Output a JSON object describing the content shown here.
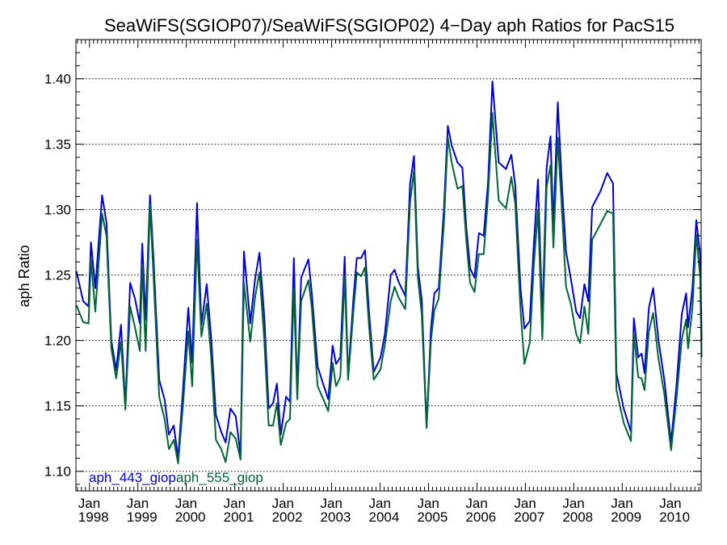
{
  "chart_data": {
    "type": "line",
    "title": "SeaWiFS(SGIOP07)/SeaWiFS(SGIOP02) 4−Day aph Ratios for PacS15",
    "xlabel": "",
    "ylabel": "aph Ratio",
    "xlim": [
      1997.72,
      2010.63
    ],
    "ylim": [
      1.085,
      1.43
    ],
    "yticks": [
      "1.10",
      "1.15",
      "1.20",
      "1.25",
      "1.30",
      "1.35",
      "1.40"
    ],
    "ytick_values": [
      1.1,
      1.15,
      1.2,
      1.25,
      1.3,
      1.35,
      1.4
    ],
    "xticks": [
      {
        "value": 1998,
        "month": "Jan",
        "year": "1998"
      },
      {
        "value": 1999,
        "month": "Jan",
        "year": "1999"
      },
      {
        "value": 2000,
        "month": "Jan",
        "year": "2000"
      },
      {
        "value": 2001,
        "month": "Jan",
        "year": "2001"
      },
      {
        "value": 2002,
        "month": "Jan",
        "year": "2002"
      },
      {
        "value": 2003,
        "month": "Jan",
        "year": "2003"
      },
      {
        "value": 2004,
        "month": "Jan",
        "year": "2004"
      },
      {
        "value": 2005,
        "month": "Jan",
        "year": "2005"
      },
      {
        "value": 2006,
        "month": "Jan",
        "year": "2006"
      },
      {
        "value": 2007,
        "month": "Jan",
        "year": "2007"
      },
      {
        "value": 2008,
        "month": "Jan",
        "year": "2008"
      },
      {
        "value": 2009,
        "month": "Jan",
        "year": "2009"
      },
      {
        "value": 2010,
        "month": "Jan",
        "year": "2010"
      }
    ],
    "grid": "horizontal dotted",
    "legend_position": "bottom-left",
    "series": [
      {
        "name": "aph_443_giop",
        "color": "#0000dd",
        "points": [
          [
            1997.73,
            1.253
          ],
          [
            1997.87,
            1.23
          ],
          [
            1997.98,
            1.226
          ],
          [
            1998.03,
            1.275
          ],
          [
            1998.12,
            1.24
          ],
          [
            1998.26,
            1.311
          ],
          [
            1998.35,
            1.29
          ],
          [
            1998.45,
            1.2
          ],
          [
            1998.55,
            1.177
          ],
          [
            1998.65,
            1.212
          ],
          [
            1998.74,
            1.15
          ],
          [
            1998.84,
            1.244
          ],
          [
            1998.94,
            1.232
          ],
          [
            1999.04,
            1.213
          ],
          [
            1999.09,
            1.274
          ],
          [
            1999.16,
            1.216
          ],
          [
            1999.25,
            1.311
          ],
          [
            1999.32,
            1.264
          ],
          [
            1999.44,
            1.17
          ],
          [
            1999.55,
            1.155
          ],
          [
            1999.64,
            1.128
          ],
          [
            1999.74,
            1.135
          ],
          [
            1999.83,
            1.11
          ],
          [
            1999.93,
            1.162
          ],
          [
            2000.04,
            1.225
          ],
          [
            2000.12,
            1.183
          ],
          [
            2000.22,
            1.305
          ],
          [
            2000.31,
            1.212
          ],
          [
            2000.42,
            1.243
          ],
          [
            2000.51,
            1.203
          ],
          [
            2000.61,
            1.143
          ],
          [
            2000.72,
            1.13
          ],
          [
            2000.81,
            1.122
          ],
          [
            2000.91,
            1.148
          ],
          [
            2001.02,
            1.142
          ],
          [
            2001.12,
            1.113
          ],
          [
            2001.19,
            1.268
          ],
          [
            2001.32,
            1.213
          ],
          [
            2001.42,
            1.247
          ],
          [
            2001.51,
            1.267
          ],
          [
            2001.61,
            1.218
          ],
          [
            2001.7,
            1.148
          ],
          [
            2001.79,
            1.152
          ],
          [
            2001.87,
            1.167
          ],
          [
            2001.95,
            1.128
          ],
          [
            2002.06,
            1.157
          ],
          [
            2002.14,
            1.153
          ],
          [
            2002.22,
            1.263
          ],
          [
            2002.29,
            1.159
          ],
          [
            2002.37,
            1.248
          ],
          [
            2002.52,
            1.262
          ],
          [
            2002.59,
            1.236
          ],
          [
            2002.71,
            1.18
          ],
          [
            2002.84,
            1.165
          ],
          [
            2002.93,
            1.155
          ],
          [
            2003.02,
            1.196
          ],
          [
            2003.09,
            1.182
          ],
          [
            2003.18,
            1.187
          ],
          [
            2003.27,
            1.264
          ],
          [
            2003.34,
            1.172
          ],
          [
            2003.45,
            1.232
          ],
          [
            2003.52,
            1.263
          ],
          [
            2003.61,
            1.263
          ],
          [
            2003.69,
            1.269
          ],
          [
            2003.77,
            1.223
          ],
          [
            2003.87,
            1.176
          ],
          [
            2004.01,
            1.187
          ],
          [
            2004.1,
            1.205
          ],
          [
            2004.22,
            1.25
          ],
          [
            2004.3,
            1.254
          ],
          [
            2004.38,
            1.245
          ],
          [
            2004.52,
            1.234
          ],
          [
            2004.62,
            1.32
          ],
          [
            2004.7,
            1.341
          ],
          [
            2004.78,
            1.256
          ],
          [
            2004.86,
            1.231
          ],
          [
            2004.96,
            1.134
          ],
          [
            2005.05,
            1.209
          ],
          [
            2005.12,
            1.236
          ],
          [
            2005.21,
            1.24
          ],
          [
            2005.32,
            1.301
          ],
          [
            2005.4,
            1.364
          ],
          [
            2005.48,
            1.349
          ],
          [
            2005.6,
            1.336
          ],
          [
            2005.7,
            1.332
          ],
          [
            2005.78,
            1.287
          ],
          [
            2005.86,
            1.255
          ],
          [
            2005.95,
            1.248
          ],
          [
            2006.04,
            1.282
          ],
          [
            2006.14,
            1.28
          ],
          [
            2006.23,
            1.321
          ],
          [
            2006.32,
            1.398
          ],
          [
            2006.45,
            1.336
          ],
          [
            2006.6,
            1.331
          ],
          [
            2006.71,
            1.342
          ],
          [
            2006.79,
            1.319
          ],
          [
            2006.9,
            1.24
          ],
          [
            2006.98,
            1.209
          ],
          [
            2007.09,
            1.215
          ],
          [
            2007.17,
            1.271
          ],
          [
            2007.26,
            1.323
          ],
          [
            2007.35,
            1.215
          ],
          [
            2007.44,
            1.332
          ],
          [
            2007.52,
            1.356
          ],
          [
            2007.58,
            1.287
          ],
          [
            2007.67,
            1.382
          ],
          [
            2007.76,
            1.315
          ],
          [
            2007.84,
            1.268
          ],
          [
            2007.94,
            1.247
          ],
          [
            2008.05,
            1.222
          ],
          [
            2008.13,
            1.217
          ],
          [
            2008.22,
            1.243
          ],
          [
            2008.3,
            1.23
          ],
          [
            2008.38,
            1.302
          ],
          [
            2008.55,
            1.314
          ],
          [
            2008.69,
            1.328
          ],
          [
            2008.81,
            1.32
          ],
          [
            2008.88,
            1.175
          ],
          [
            2009.03,
            1.148
          ],
          [
            2009.18,
            1.13
          ],
          [
            2009.24,
            1.217
          ],
          [
            2009.33,
            1.187
          ],
          [
            2009.4,
            1.19
          ],
          [
            2009.46,
            1.175
          ],
          [
            2009.55,
            1.225
          ],
          [
            2009.64,
            1.24
          ],
          [
            2009.75,
            1.2
          ],
          [
            2009.87,
            1.17
          ],
          [
            2010.01,
            1.122
          ],
          [
            2010.12,
            1.165
          ],
          [
            2010.23,
            1.22
          ],
          [
            2010.32,
            1.236
          ],
          [
            2010.36,
            1.21
          ],
          [
            2010.45,
            1.24
          ],
          [
            2010.53,
            1.292
          ],
          [
            2010.61,
            1.265
          ],
          [
            2010.64,
            1.2
          ]
        ]
      },
      {
        "name": "aph_555_giop",
        "color": "#006633",
        "points": [
          [
            1997.73,
            1.227
          ],
          [
            1997.87,
            1.214
          ],
          [
            1997.98,
            1.213
          ],
          [
            1998.03,
            1.262
          ],
          [
            1998.12,
            1.222
          ],
          [
            1998.26,
            1.297
          ],
          [
            1998.35,
            1.28
          ],
          [
            1998.45,
            1.194
          ],
          [
            1998.55,
            1.171
          ],
          [
            1998.65,
            1.199
          ],
          [
            1998.74,
            1.147
          ],
          [
            1998.84,
            1.226
          ],
          [
            1998.94,
            1.21
          ],
          [
            1999.04,
            1.192
          ],
          [
            1999.09,
            1.258
          ],
          [
            1999.16,
            1.192
          ],
          [
            1999.25,
            1.304
          ],
          [
            1999.32,
            1.251
          ],
          [
            1999.44,
            1.157
          ],
          [
            1999.55,
            1.14
          ],
          [
            1999.64,
            1.117
          ],
          [
            1999.74,
            1.124
          ],
          [
            1999.83,
            1.106
          ],
          [
            1999.93,
            1.15
          ],
          [
            2000.04,
            1.207
          ],
          [
            2000.12,
            1.165
          ],
          [
            2000.22,
            1.277
          ],
          [
            2000.31,
            1.203
          ],
          [
            2000.42,
            1.228
          ],
          [
            2000.51,
            1.188
          ],
          [
            2000.61,
            1.124
          ],
          [
            2000.72,
            1.117
          ],
          [
            2000.81,
            1.107
          ],
          [
            2000.91,
            1.13
          ],
          [
            2001.02,
            1.125
          ],
          [
            2001.12,
            1.109
          ],
          [
            2001.19,
            1.244
          ],
          [
            2001.32,
            1.199
          ],
          [
            2001.42,
            1.233
          ],
          [
            2001.51,
            1.252
          ],
          [
            2001.61,
            1.2
          ],
          [
            2001.7,
            1.135
          ],
          [
            2001.79,
            1.135
          ],
          [
            2001.87,
            1.152
          ],
          [
            2001.95,
            1.12
          ],
          [
            2002.06,
            1.137
          ],
          [
            2002.14,
            1.14
          ],
          [
            2002.22,
            1.24
          ],
          [
            2002.29,
            1.155
          ],
          [
            2002.37,
            1.23
          ],
          [
            2002.52,
            1.246
          ],
          [
            2002.59,
            1.225
          ],
          [
            2002.71,
            1.165
          ],
          [
            2002.84,
            1.154
          ],
          [
            2002.93,
            1.146
          ],
          [
            2003.02,
            1.183
          ],
          [
            2003.09,
            1.165
          ],
          [
            2003.18,
            1.172
          ],
          [
            2003.27,
            1.249
          ],
          [
            2003.34,
            1.17
          ],
          [
            2003.45,
            1.222
          ],
          [
            2003.52,
            1.252
          ],
          [
            2003.61,
            1.249
          ],
          [
            2003.69,
            1.256
          ],
          [
            2003.77,
            1.212
          ],
          [
            2003.87,
            1.17
          ],
          [
            2004.01,
            1.178
          ],
          [
            2004.1,
            1.197
          ],
          [
            2004.22,
            1.23
          ],
          [
            2004.3,
            1.241
          ],
          [
            2004.38,
            1.233
          ],
          [
            2004.52,
            1.224
          ],
          [
            2004.62,
            1.306
          ],
          [
            2004.7,
            1.33
          ],
          [
            2004.78,
            1.248
          ],
          [
            2004.86,
            1.22
          ],
          [
            2004.96,
            1.133
          ],
          [
            2005.05,
            1.2
          ],
          [
            2005.12,
            1.223
          ],
          [
            2005.21,
            1.232
          ],
          [
            2005.32,
            1.29
          ],
          [
            2005.4,
            1.355
          ],
          [
            2005.48,
            1.336
          ],
          [
            2005.6,
            1.316
          ],
          [
            2005.7,
            1.318
          ],
          [
            2005.78,
            1.277
          ],
          [
            2005.86,
            1.244
          ],
          [
            2005.95,
            1.237
          ],
          [
            2006.04,
            1.266
          ],
          [
            2006.14,
            1.266
          ],
          [
            2006.23,
            1.31
          ],
          [
            2006.32,
            1.374
          ],
          [
            2006.45,
            1.307
          ],
          [
            2006.6,
            1.301
          ],
          [
            2006.71,
            1.325
          ],
          [
            2006.79,
            1.305
          ],
          [
            2006.9,
            1.223
          ],
          [
            2006.98,
            1.182
          ],
          [
            2007.09,
            1.198
          ],
          [
            2007.17,
            1.255
          ],
          [
            2007.26,
            1.3
          ],
          [
            2007.35,
            1.201
          ],
          [
            2007.44,
            1.317
          ],
          [
            2007.52,
            1.334
          ],
          [
            2007.58,
            1.271
          ],
          [
            2007.67,
            1.355
          ],
          [
            2007.76,
            1.297
          ],
          [
            2007.84,
            1.241
          ],
          [
            2007.94,
            1.228
          ],
          [
            2008.05,
            1.205
          ],
          [
            2008.13,
            1.198
          ],
          [
            2008.22,
            1.226
          ],
          [
            2008.3,
            1.205
          ],
          [
            2008.38,
            1.277
          ],
          [
            2008.55,
            1.289
          ],
          [
            2008.69,
            1.299
          ],
          [
            2008.81,
            1.297
          ],
          [
            2008.88,
            1.162
          ],
          [
            2009.03,
            1.137
          ],
          [
            2009.18,
            1.123
          ],
          [
            2009.24,
            1.205
          ],
          [
            2009.33,
            1.172
          ],
          [
            2009.4,
            1.171
          ],
          [
            2009.46,
            1.162
          ],
          [
            2009.55,
            1.207
          ],
          [
            2009.64,
            1.221
          ],
          [
            2009.75,
            1.186
          ],
          [
            2009.87,
            1.159
          ],
          [
            2010.01,
            1.116
          ],
          [
            2010.12,
            1.155
          ],
          [
            2010.23,
            1.201
          ],
          [
            2010.32,
            1.216
          ],
          [
            2010.36,
            1.194
          ],
          [
            2010.45,
            1.225
          ],
          [
            2010.53,
            1.281
          ],
          [
            2010.61,
            1.248
          ],
          [
            2010.64,
            1.187
          ]
        ]
      }
    ]
  }
}
